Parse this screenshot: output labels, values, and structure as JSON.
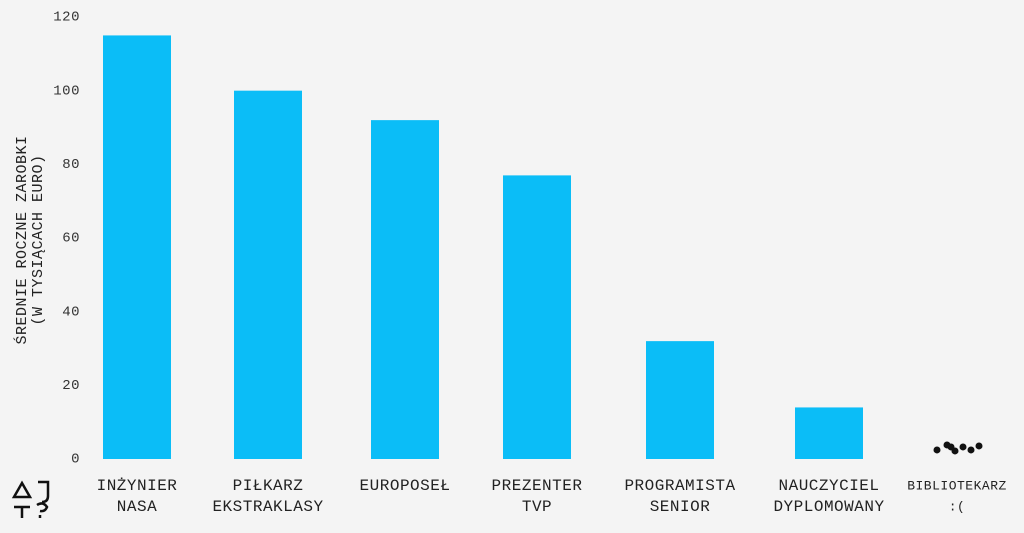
{
  "chart_data": {
    "type": "bar",
    "y_label": [
      "ŚREDNIE ROCZNE ZAROBKI",
      "(W TYSIĄCACH EURO)"
    ],
    "categories": [
      [
        "INŻYNIER",
        "NASA"
      ],
      [
        "PIŁKARZ",
        "EKSTRAKLASY"
      ],
      [
        "EUROPOSEŁ"
      ],
      [
        "PREZENTER",
        "TVP"
      ],
      [
        "PROGRAMISTA",
        "SENIOR"
      ],
      [
        "NAUCZYCIEL",
        "DYPLOMOWANY"
      ],
      [
        "BIBLIOTEKARZ",
        ":("
      ]
    ],
    "values": [
      115,
      100,
      92,
      77,
      32,
      14,
      3
    ],
    "color": "#0bbdf7",
    "ylim": [
      0,
      120
    ],
    "yticks": [
      0,
      20,
      40,
      60,
      80,
      100,
      120
    ],
    "grid": false
  }
}
